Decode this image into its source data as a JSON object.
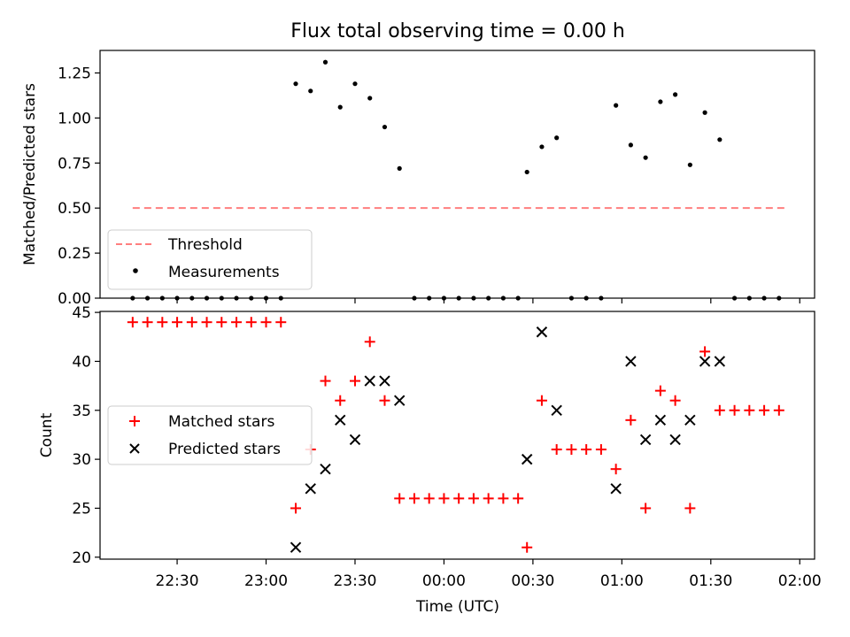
{
  "figure": {
    "title": "Flux total observing time = 0.00 h",
    "xlabel": "Time (UTC)"
  },
  "colors": {
    "threshold": "#ff7f7f",
    "measurements": "#000000",
    "matched": "#ff0000",
    "predicted": "#000000",
    "axes": "#000000"
  },
  "chart_data": [
    {
      "type": "scatter",
      "panel": "top",
      "ylabel": "Matched/Predicted stars",
      "ylim": [
        0.0,
        1.375
      ],
      "yticks": [
        0.0,
        0.25,
        0.5,
        0.75,
        1.0,
        1.25
      ],
      "ytick_labels": [
        "0.00",
        "0.25",
        "0.50",
        "0.75",
        "1.00",
        "1.25"
      ],
      "xlim": [
        "22:04",
        "02:05"
      ],
      "xticks": [
        "22:30",
        "23:00",
        "23:30",
        "00:00",
        "00:30",
        "01:00",
        "01:30",
        "02:00"
      ],
      "grid": false,
      "legend_position": "lower-left",
      "threshold": {
        "name": "Threshold",
        "style": "dashed",
        "y": 0.5,
        "x_start": "22:15",
        "x_end": "01:55"
      },
      "series": [
        {
          "name": "Measurements",
          "marker": "dot",
          "x": [
            "22:15",
            "22:20",
            "22:25",
            "22:30",
            "22:35",
            "22:40",
            "22:45",
            "22:50",
            "22:55",
            "23:00",
            "23:05",
            "23:10",
            "23:15",
            "23:20",
            "23:25",
            "23:30",
            "23:35",
            "23:40",
            "23:45",
            "23:50",
            "23:55",
            "00:00",
            "00:05",
            "00:10",
            "00:15",
            "00:20",
            "00:25",
            "00:28",
            "00:33",
            "00:38",
            "00:43",
            "00:48",
            "00:53",
            "00:58",
            "01:03",
            "01:08",
            "01:13",
            "01:18",
            "01:23",
            "01:28",
            "01:33",
            "01:38",
            "01:43",
            "01:48",
            "01:53"
          ],
          "y": [
            0,
            0,
            0,
            0,
            0,
            0,
            0,
            0,
            0,
            0,
            0,
            1.19,
            1.15,
            1.31,
            1.06,
            1.19,
            1.11,
            0.95,
            0.72,
            0,
            0,
            0,
            0,
            0,
            0,
            0,
            0,
            0.7,
            0.84,
            0.89,
            0,
            0,
            0,
            1.07,
            0.85,
            0.78,
            1.09,
            1.13,
            0.74,
            1.03,
            0.88,
            0,
            0,
            0,
            0
          ]
        }
      ]
    },
    {
      "type": "scatter",
      "panel": "bottom",
      "ylabel": "Count",
      "ylim": [
        19.8,
        45.1
      ],
      "yticks": [
        20,
        25,
        30,
        35,
        40,
        45
      ],
      "ytick_labels": [
        "20",
        "25",
        "30",
        "35",
        "40",
        "45"
      ],
      "xlim": [
        "22:04",
        "02:05"
      ],
      "xticks": [
        "22:30",
        "23:00",
        "23:30",
        "00:00",
        "00:30",
        "01:00",
        "01:30",
        "02:00"
      ],
      "xtick_labels": [
        "22:30",
        "23:00",
        "23:30",
        "00:00",
        "00:30",
        "01:00",
        "01:30",
        "02:00"
      ],
      "grid": false,
      "legend_position": "center-left",
      "series": [
        {
          "name": "Matched stars",
          "marker": "plus",
          "x": [
            "22:15",
            "22:20",
            "22:25",
            "22:30",
            "22:35",
            "22:40",
            "22:45",
            "22:50",
            "22:55",
            "23:00",
            "23:05",
            "23:10",
            "23:15",
            "23:20",
            "23:25",
            "23:30",
            "23:35",
            "23:40",
            "23:45",
            "23:50",
            "23:55",
            "00:00",
            "00:05",
            "00:10",
            "00:15",
            "00:20",
            "00:25",
            "00:28",
            "00:33",
            "00:38",
            "00:43",
            "00:48",
            "00:53",
            "00:58",
            "01:03",
            "01:08",
            "01:13",
            "01:18",
            "01:23",
            "01:28",
            "01:33",
            "01:38",
            "01:43",
            "01:48",
            "01:53"
          ],
          "y": [
            44,
            44,
            44,
            44,
            44,
            44,
            44,
            44,
            44,
            44,
            44,
            25,
            31,
            38,
            36,
            38,
            42,
            36,
            26,
            26,
            26,
            26,
            26,
            26,
            26,
            26,
            26,
            21,
            36,
            31,
            31,
            31,
            31,
            29,
            34,
            25,
            37,
            36,
            25,
            41,
            35,
            35,
            35,
            35,
            35
          ]
        },
        {
          "name": "Predicted stars",
          "marker": "x",
          "x": [
            "23:10",
            "23:15",
            "23:20",
            "23:25",
            "23:30",
            "23:35",
            "23:40",
            "23:45",
            "00:28",
            "00:33",
            "00:38",
            "00:58",
            "01:03",
            "01:08",
            "01:13",
            "01:18",
            "01:23",
            "01:28",
            "01:33"
          ],
          "y": [
            21,
            27,
            29,
            34,
            32,
            38,
            38,
            36,
            30,
            43,
            35,
            27,
            40,
            32,
            34,
            32,
            34,
            40,
            40
          ]
        }
      ]
    }
  ]
}
